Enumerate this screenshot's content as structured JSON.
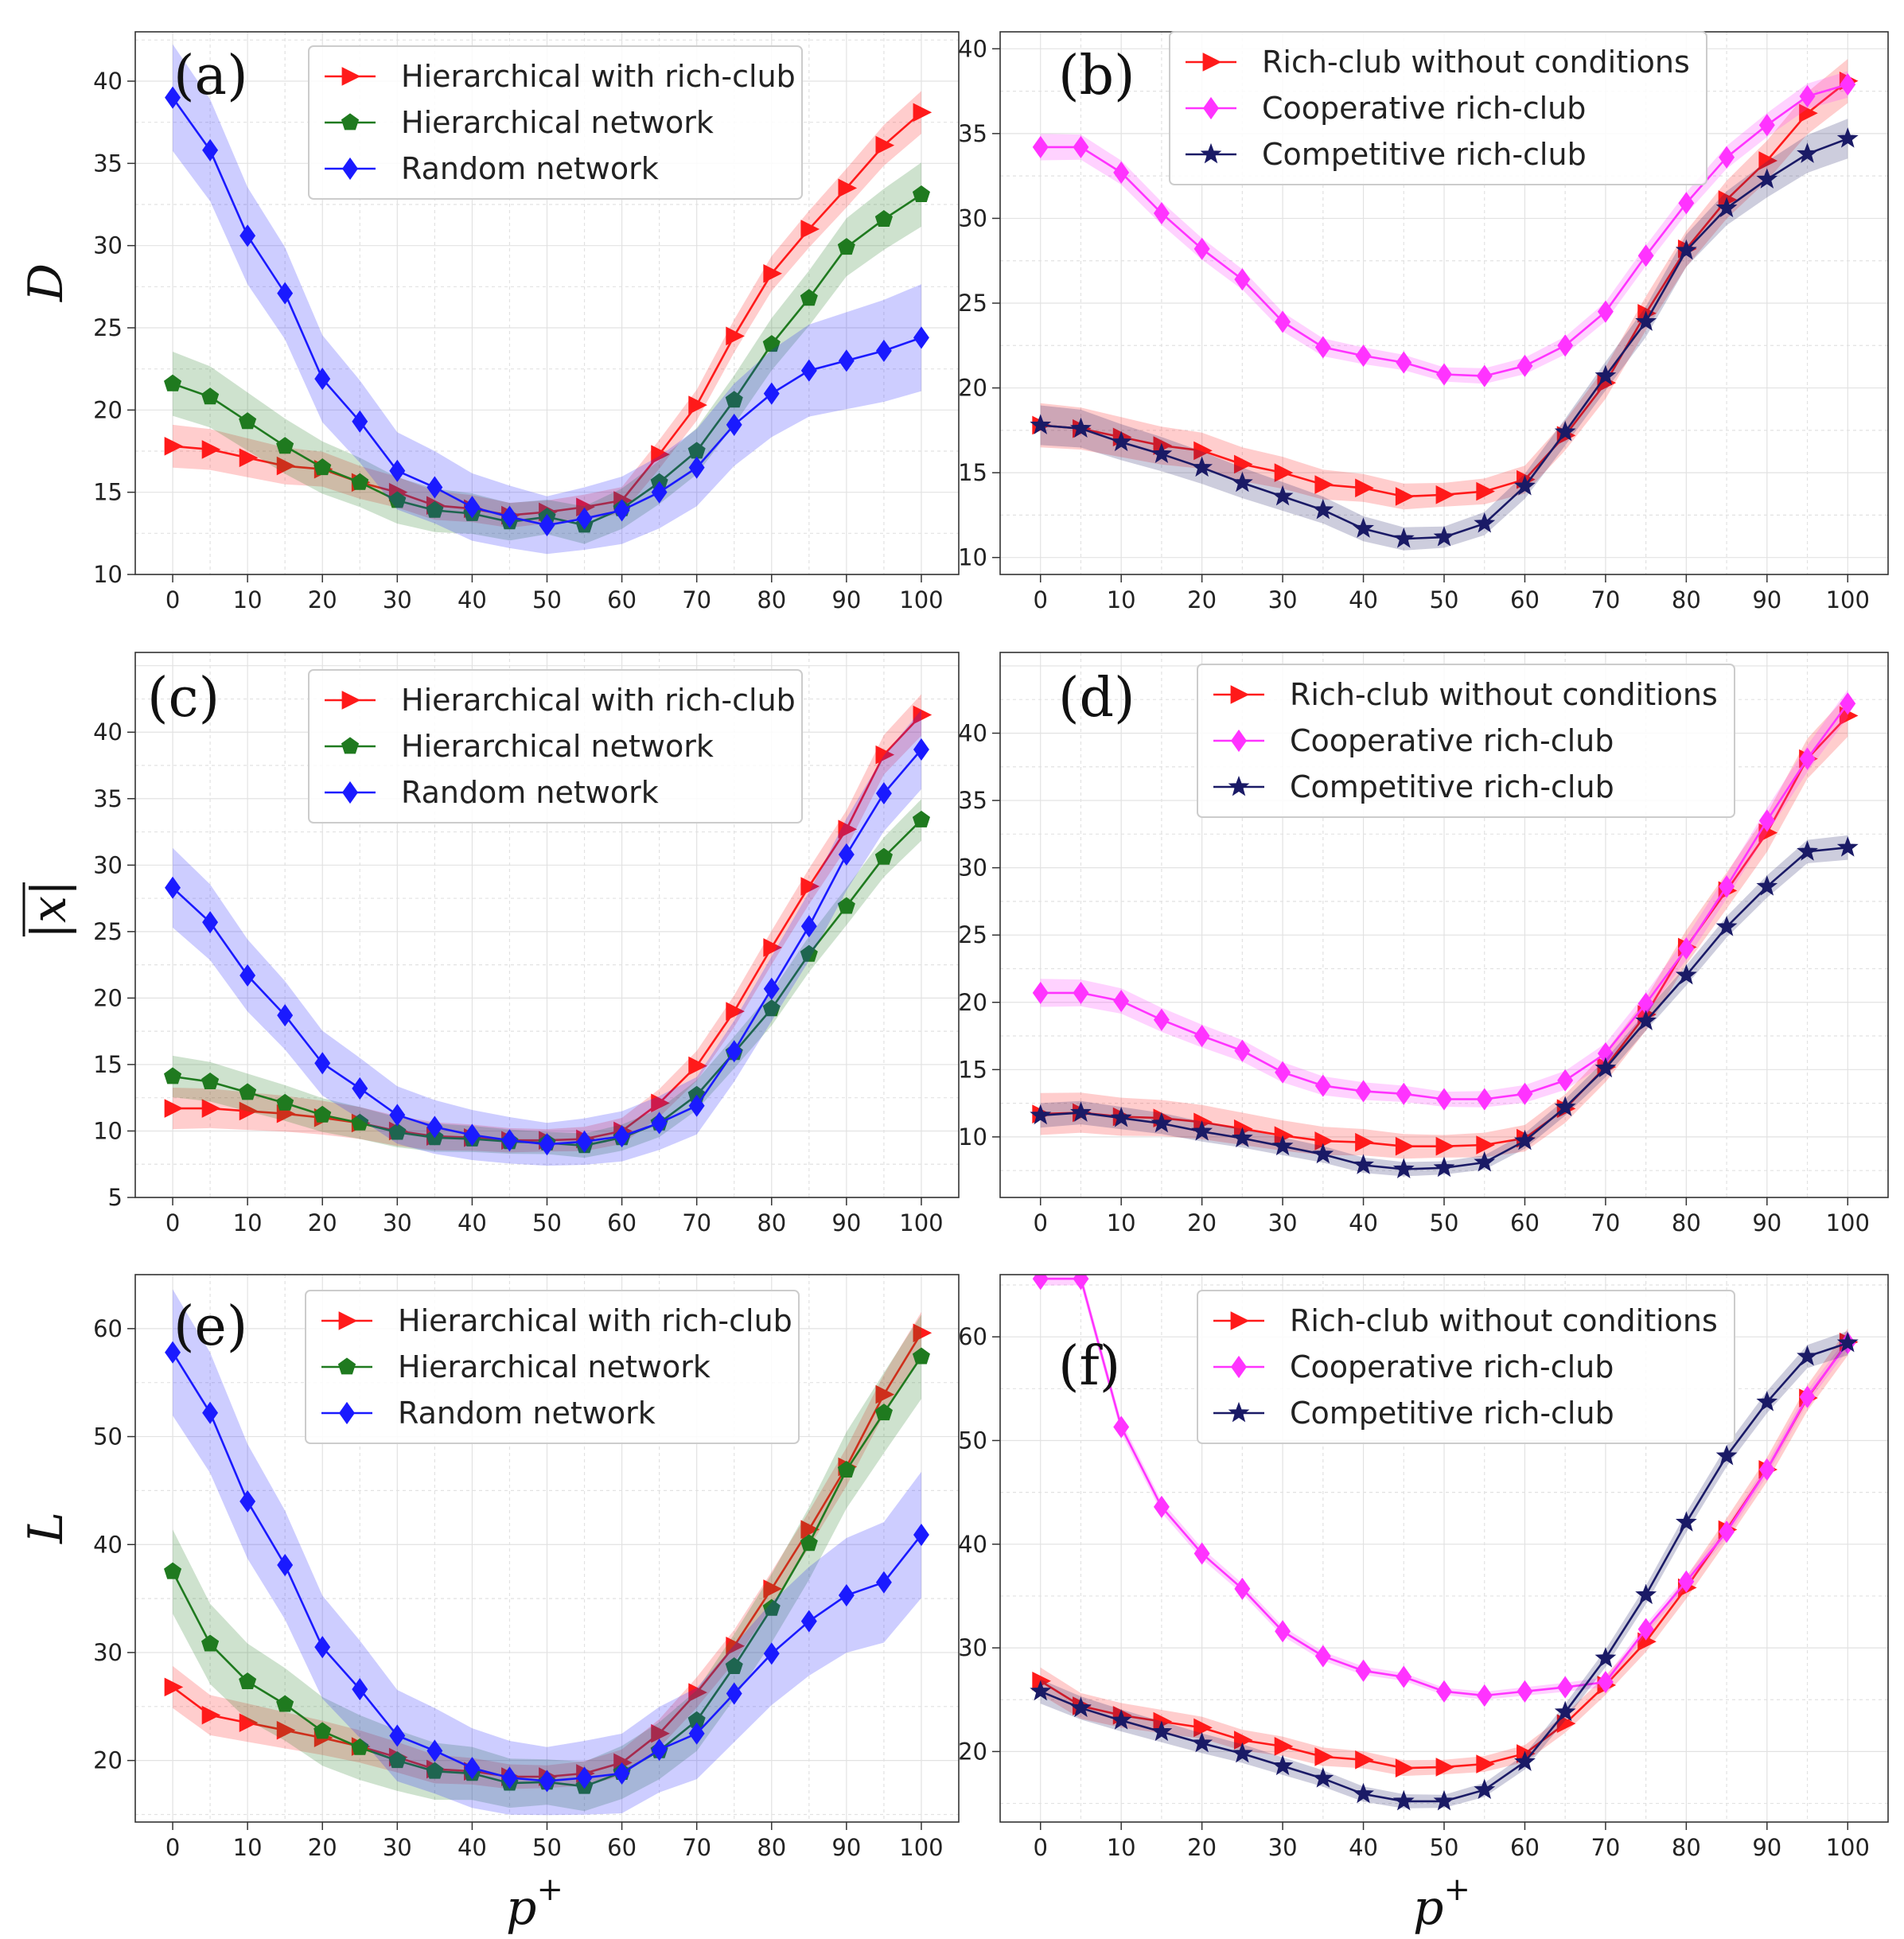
{
  "colors": {
    "hierarchical_with_rich_club": "#ff1a1a",
    "hierarchical_network": "#1f7a1f",
    "random_network": "#1a1aff",
    "rich_club_without_conditions": "#ff1a1a",
    "cooperative_rich_club": "#ff33ff",
    "competitive_rich_club": "#1a1a66"
  },
  "labels": {
    "y_D": "D",
    "y_x": "|x|",
    "y_L": "L",
    "x_axis_p": "p",
    "x_axis_sup": "+"
  },
  "chart_data": [
    {
      "id": "a",
      "panel_label": "(a)",
      "type": "line",
      "x": [
        0,
        5,
        10,
        15,
        20,
        25,
        30,
        35,
        40,
        45,
        50,
        55,
        60,
        65,
        70,
        75,
        80,
        85,
        90,
        95,
        100
      ],
      "ylim": [
        10,
        43
      ],
      "yticks": [
        10,
        15,
        20,
        25,
        30,
        35,
        40
      ],
      "xticks": [
        0,
        10,
        20,
        30,
        40,
        50,
        60,
        70,
        80,
        90,
        100
      ],
      "ylabel": "D",
      "xlabel": "",
      "legend": "top-center",
      "series": [
        {
          "name": "Hierarchical with rich-club",
          "color": "#ff1a1a",
          "marker": "triangle-right",
          "values": [
            17.8,
            17.6,
            17.1,
            16.6,
            16.4,
            15.6,
            15.0,
            14.2,
            14.0,
            13.6,
            13.8,
            14.1,
            14.5,
            17.3,
            20.3,
            24.5,
            28.3,
            31.0,
            33.5,
            36.1,
            38.1
          ],
          "band": 1.0
        },
        {
          "name": "Hierarchical network",
          "color": "#1f7a1f",
          "marker": "pentagon",
          "values": [
            21.6,
            20.8,
            19.3,
            17.8,
            16.5,
            15.6,
            14.5,
            13.9,
            13.7,
            13.2,
            13.5,
            13.0,
            14.0,
            15.6,
            17.5,
            20.6,
            24.0,
            26.8,
            29.9,
            31.6,
            33.1
          ],
          "band": 1.5
        },
        {
          "name": "Random network",
          "color": "#1a1aff",
          "marker": "diamond",
          "values": [
            39.0,
            35.8,
            30.6,
            27.1,
            21.9,
            19.3,
            16.3,
            15.3,
            14.1,
            13.5,
            13.0,
            13.4,
            13.9,
            15.0,
            16.5,
            19.1,
            21.0,
            22.4,
            23.0,
            23.6,
            24.4
          ],
          "band": 2.5
        }
      ]
    },
    {
      "id": "b",
      "panel_label": "(b)",
      "type": "line",
      "x": [
        0,
        5,
        10,
        15,
        20,
        25,
        30,
        35,
        40,
        45,
        50,
        55,
        60,
        65,
        70,
        75,
        80,
        85,
        90,
        95,
        100
      ],
      "ylim": [
        9,
        41
      ],
      "yticks": [
        10,
        15,
        20,
        25,
        30,
        35,
        40
      ],
      "xticks": [
        0,
        10,
        20,
        30,
        40,
        50,
        60,
        70,
        80,
        90,
        100
      ],
      "ylabel": "",
      "xlabel": "",
      "legend": "top-center",
      "series": [
        {
          "name": "Rich-club without conditions",
          "color": "#ff1a1a",
          "marker": "triangle-right",
          "values": [
            17.8,
            17.6,
            17.1,
            16.6,
            16.3,
            15.5,
            15.0,
            14.3,
            14.1,
            13.6,
            13.7,
            13.9,
            14.6,
            17.2,
            20.3,
            24.4,
            28.2,
            31.1,
            33.4,
            36.2,
            38.1
          ],
          "band": 1.0
        },
        {
          "name": "Cooperative rich-club",
          "color": "#ff33ff",
          "marker": "diamond",
          "values": [
            34.2,
            34.2,
            32.7,
            30.3,
            28.2,
            26.4,
            23.9,
            22.4,
            21.9,
            21.5,
            20.8,
            20.7,
            21.3,
            22.5,
            24.5,
            27.8,
            30.9,
            33.6,
            35.5,
            37.2,
            37.9
          ],
          "band": 0.6
        },
        {
          "name": "Competitive rich-club",
          "color": "#1a1a66",
          "marker": "star",
          "values": [
            17.8,
            17.6,
            16.8,
            16.1,
            15.3,
            14.4,
            13.6,
            12.8,
            11.7,
            11.1,
            11.2,
            12.0,
            14.2,
            17.4,
            20.7,
            23.9,
            28.1,
            30.6,
            32.3,
            33.8,
            34.7
          ],
          "band": 0.9
        }
      ]
    },
    {
      "id": "c",
      "panel_label": "(c)",
      "type": "line",
      "x": [
        0,
        5,
        10,
        15,
        20,
        25,
        30,
        35,
        40,
        45,
        50,
        55,
        60,
        65,
        70,
        75,
        80,
        85,
        90,
        95,
        100
      ],
      "ylim": [
        5,
        46
      ],
      "yticks": [
        5,
        10,
        15,
        20,
        25,
        30,
        35,
        40
      ],
      "xticks": [
        0,
        10,
        20,
        30,
        40,
        50,
        60,
        70,
        80,
        90,
        100
      ],
      "ylabel": "|x|",
      "xlabel": "",
      "legend": "top-center",
      "series": [
        {
          "name": "Hierarchical with rich-club",
          "color": "#ff1a1a",
          "marker": "triangle-right",
          "values": [
            11.7,
            11.7,
            11.5,
            11.3,
            11.0,
            10.6,
            10.0,
            9.6,
            9.5,
            9.3,
            9.3,
            9.4,
            10.0,
            12.1,
            14.9,
            19.0,
            23.8,
            28.4,
            32.7,
            38.3,
            41.3
          ],
          "band": 1.2
        },
        {
          "name": "Hierarchical network",
          "color": "#1f7a1f",
          "marker": "pentagon",
          "values": [
            14.1,
            13.7,
            12.9,
            12.1,
            11.2,
            10.6,
            9.9,
            9.5,
            9.4,
            9.2,
            9.1,
            8.9,
            9.5,
            10.6,
            12.7,
            15.9,
            19.2,
            23.3,
            26.9,
            30.6,
            33.4
          ],
          "band": 1.2
        },
        {
          "name": "Random network",
          "color": "#1a1aff",
          "marker": "diamond",
          "values": [
            28.3,
            25.7,
            21.7,
            18.7,
            15.1,
            13.2,
            11.2,
            10.3,
            9.7,
            9.3,
            9.0,
            9.2,
            9.6,
            10.6,
            11.9,
            16.0,
            20.7,
            25.4,
            30.8,
            35.4,
            38.7
          ],
          "band": 2.3
        }
      ]
    },
    {
      "id": "d",
      "panel_label": "(d)",
      "type": "line",
      "x": [
        0,
        5,
        10,
        15,
        20,
        25,
        30,
        35,
        40,
        45,
        50,
        55,
        60,
        65,
        70,
        75,
        80,
        85,
        90,
        95,
        100
      ],
      "ylim": [
        5.5,
        46
      ],
      "yticks": [
        10,
        15,
        20,
        25,
        30,
        35,
        40
      ],
      "xticks": [
        0,
        10,
        20,
        30,
        40,
        50,
        60,
        70,
        80,
        90,
        100
      ],
      "ylabel": "",
      "xlabel": "",
      "legend": "top-center",
      "series": [
        {
          "name": "Rich-club without conditions",
          "color": "#ff1a1a",
          "marker": "triangle-right",
          "values": [
            11.7,
            11.8,
            11.5,
            11.4,
            11.1,
            10.6,
            10.1,
            9.7,
            9.6,
            9.3,
            9.3,
            9.4,
            9.9,
            12.1,
            15.2,
            19.1,
            24.1,
            28.3,
            32.6,
            38.1,
            41.3
          ],
          "band": 1.2
        },
        {
          "name": "Cooperative rich-club",
          "color": "#ff33ff",
          "marker": "diamond",
          "values": [
            20.7,
            20.7,
            20.1,
            18.7,
            17.5,
            16.4,
            14.8,
            13.8,
            13.4,
            13.2,
            12.8,
            12.8,
            13.2,
            14.2,
            16.2,
            19.9,
            24.0,
            28.6,
            33.5,
            38.1,
            42.2
          ],
          "band": 0.8
        },
        {
          "name": "Competitive rich-club",
          "color": "#1a1a66",
          "marker": "star",
          "values": [
            11.6,
            11.8,
            11.4,
            11.0,
            10.4,
            9.9,
            9.3,
            8.7,
            7.9,
            7.6,
            7.7,
            8.1,
            9.7,
            12.2,
            15.1,
            18.6,
            22.0,
            25.6,
            28.6,
            31.2,
            31.5
          ],
          "band": 0.7
        }
      ]
    },
    {
      "id": "e",
      "panel_label": "(e)",
      "type": "line",
      "x": [
        0,
        5,
        10,
        15,
        20,
        25,
        30,
        35,
        40,
        45,
        50,
        55,
        60,
        65,
        70,
        75,
        80,
        85,
        90,
        95,
        100
      ],
      "ylim": [
        14.3,
        65
      ],
      "yticks": [
        20,
        30,
        40,
        50,
        60
      ],
      "xticks": [
        0,
        10,
        20,
        30,
        40,
        50,
        60,
        70,
        80,
        90,
        100
      ],
      "ylabel": "L",
      "xlabel": "p+",
      "legend": "top-center",
      "series": [
        {
          "name": "Hierarchical with rich-club",
          "color": "#ff1a1a",
          "marker": "triangle-right",
          "values": [
            26.8,
            24.2,
            23.5,
            22.8,
            22.1,
            21.3,
            20.3,
            19.2,
            19.0,
            18.5,
            18.5,
            18.8,
            19.8,
            22.5,
            26.3,
            30.6,
            35.9,
            41.4,
            47.2,
            53.9,
            59.6
          ],
          "band": 1.5
        },
        {
          "name": "Hierarchical network",
          "color": "#1f7a1f",
          "marker": "pentagon",
          "values": [
            37.5,
            30.8,
            27.3,
            25.2,
            22.7,
            21.2,
            20.0,
            19.0,
            18.8,
            17.9,
            18.0,
            17.6,
            18.9,
            20.9,
            23.7,
            28.7,
            34.1,
            40.1,
            46.9,
            52.2,
            57.4
          ],
          "band": 3.0
        },
        {
          "name": "Random network",
          "color": "#1a1aff",
          "marker": "diamond",
          "values": [
            57.8,
            52.2,
            44.0,
            38.1,
            30.5,
            26.6,
            22.3,
            20.9,
            19.3,
            18.4,
            18.1,
            18.4,
            18.8,
            21.0,
            22.5,
            26.2,
            29.9,
            32.9,
            35.3,
            36.5,
            40.9
          ],
          "band": 4.5
        }
      ]
    },
    {
      "id": "f",
      "panel_label": "(f)",
      "type": "line",
      "x": [
        0,
        5,
        10,
        15,
        20,
        25,
        30,
        35,
        40,
        45,
        50,
        55,
        60,
        65,
        70,
        75,
        80,
        85,
        90,
        95,
        100
      ],
      "ylim": [
        13.2,
        66
      ],
      "yticks": [
        20,
        30,
        40,
        50,
        60
      ],
      "xticks": [
        0,
        10,
        20,
        30,
        40,
        50,
        60,
        70,
        80,
        90,
        100
      ],
      "ylabel": "",
      "xlabel": "p+",
      "legend": "top-center",
      "series": [
        {
          "name": "Rich-club without conditions",
          "color": "#ff1a1a",
          "marker": "triangle-right",
          "values": [
            26.8,
            24.4,
            23.5,
            22.9,
            22.3,
            21.1,
            20.5,
            19.5,
            19.2,
            18.4,
            18.5,
            18.8,
            19.8,
            22.7,
            26.4,
            30.6,
            35.8,
            41.4,
            47.2,
            54.1,
            59.5
          ],
          "band": 1.0
        },
        {
          "name": "Cooperative rich-club",
          "color": "#ff33ff",
          "marker": "diamond",
          "values": [
            65.6,
            65.6,
            51.3,
            43.6,
            39.1,
            35.7,
            31.6,
            29.2,
            27.8,
            27.2,
            25.8,
            25.4,
            25.8,
            26.2,
            26.7,
            31.8,
            36.4,
            41.2,
            47.2,
            54.2,
            59.4
          ],
          "band": 0.5
        },
        {
          "name": "Competitive rich-club",
          "color": "#1a1a66",
          "marker": "star",
          "values": [
            25.8,
            24.2,
            23.0,
            21.9,
            20.8,
            19.8,
            18.6,
            17.4,
            15.9,
            15.2,
            15.2,
            16.3,
            19.0,
            23.8,
            29.0,
            35.1,
            42.1,
            48.5,
            53.7,
            58.1,
            59.4
          ],
          "band": 0.9
        }
      ]
    }
  ]
}
